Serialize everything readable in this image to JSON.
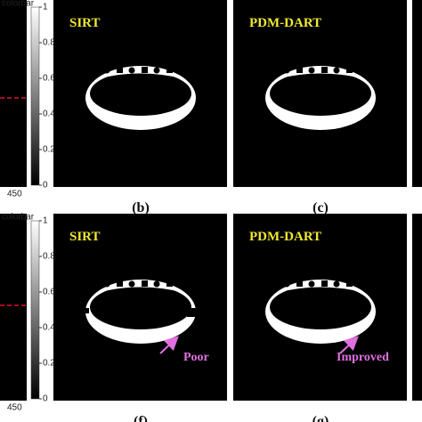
{
  "rows": [
    {
      "colorbar_label": "colorbar",
      "colorbar_ticks": [
        "1",
        "0.8",
        "0.6",
        "0.4",
        "0.2",
        "0"
      ],
      "axis_label": "450",
      "panels": [
        {
          "title": "SIRT",
          "caption": "(b)"
        },
        {
          "title": "PDM-DART",
          "caption": "(c)"
        }
      ]
    },
    {
      "colorbar_label": "colorbar",
      "colorbar_ticks": [
        "1",
        "0.8",
        "0.6",
        "0.4",
        "0.2",
        "0"
      ],
      "axis_label": "450",
      "panels": [
        {
          "title": "SIRT",
          "caption": "(f)",
          "annotation": "Poor"
        },
        {
          "title": "PDM-DART",
          "caption": "(g)",
          "annotation": "Improved"
        }
      ]
    }
  ]
}
